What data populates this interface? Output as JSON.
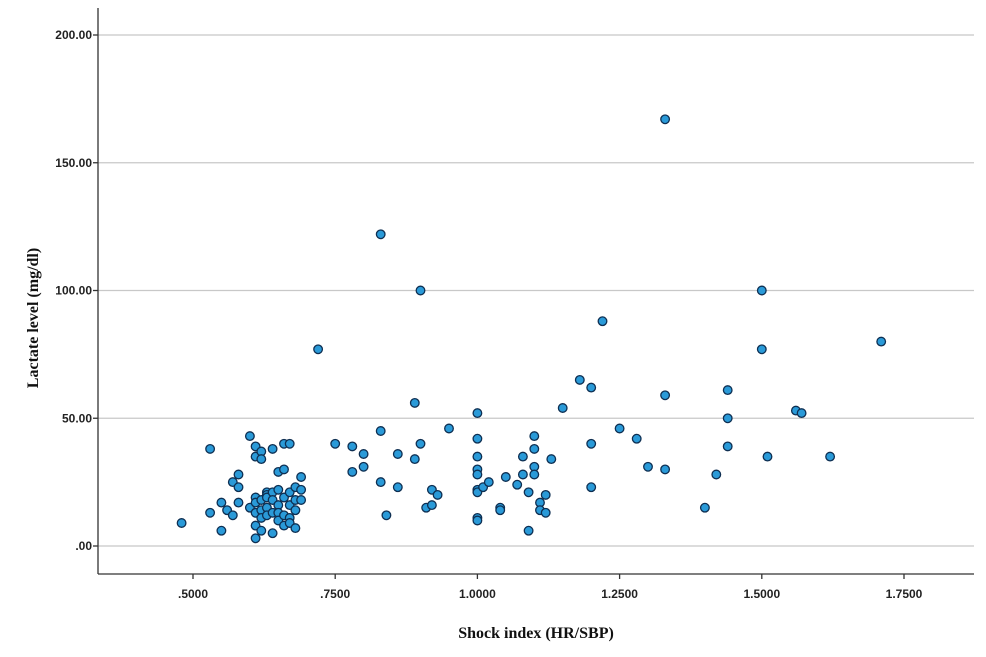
{
  "chart_data": {
    "type": "scatter",
    "xlabel": "Shock index (HR/SBP)",
    "ylabel": "Lactate level (mg/dl)",
    "xlim": [
      0.3,
      1.88
    ],
    "ylim": [
      -10,
      210
    ],
    "x_ticks": [
      0.5,
      0.75,
      1.0,
      1.25,
      1.5,
      1.75
    ],
    "x_tick_labels": [
      ".5000",
      ".7500",
      "1.0000",
      "1.2500",
      "1.5000",
      "1.7500"
    ],
    "y_ticks": [
      0,
      50,
      100,
      150,
      200
    ],
    "y_tick_labels": [
      ".00",
      "50.00",
      "100.00",
      "150.00",
      "200.00"
    ],
    "grid": "horizontal",
    "marker_fill": "#2a9ad8",
    "marker_edge": "#0e2f52",
    "points": [
      [
        0.48,
        9
      ],
      [
        0.53,
        38
      ],
      [
        0.53,
        13
      ],
      [
        0.55,
        17
      ],
      [
        0.55,
        6
      ],
      [
        0.56,
        14
      ],
      [
        0.57,
        12
      ],
      [
        0.57,
        25
      ],
      [
        0.58,
        28
      ],
      [
        0.58,
        23
      ],
      [
        0.58,
        17
      ],
      [
        0.6,
        43
      ],
      [
        0.6,
        15
      ],
      [
        0.61,
        39
      ],
      [
        0.61,
        35
      ],
      [
        0.61,
        19
      ],
      [
        0.61,
        17
      ],
      [
        0.61,
        13
      ],
      [
        0.61,
        8
      ],
      [
        0.61,
        3
      ],
      [
        0.62,
        37
      ],
      [
        0.62,
        34
      ],
      [
        0.62,
        18
      ],
      [
        0.62,
        14
      ],
      [
        0.62,
        11
      ],
      [
        0.62,
        6
      ],
      [
        0.63,
        21
      ],
      [
        0.63,
        20
      ],
      [
        0.63,
        19
      ],
      [
        0.63,
        15
      ],
      [
        0.63,
        12
      ],
      [
        0.64,
        38
      ],
      [
        0.64,
        21
      ],
      [
        0.64,
        18
      ],
      [
        0.64,
        13
      ],
      [
        0.64,
        5
      ],
      [
        0.65,
        29
      ],
      [
        0.65,
        22
      ],
      [
        0.65,
        16
      ],
      [
        0.65,
        13
      ],
      [
        0.65,
        10
      ],
      [
        0.66,
        40
      ],
      [
        0.66,
        30
      ],
      [
        0.66,
        19
      ],
      [
        0.66,
        12
      ],
      [
        0.66,
        8
      ],
      [
        0.67,
        40
      ],
      [
        0.67,
        21
      ],
      [
        0.67,
        16
      ],
      [
        0.67,
        11
      ],
      [
        0.67,
        9
      ],
      [
        0.68,
        23
      ],
      [
        0.68,
        18
      ],
      [
        0.68,
        14
      ],
      [
        0.68,
        7
      ],
      [
        0.69,
        27
      ],
      [
        0.69,
        22
      ],
      [
        0.69,
        18
      ],
      [
        0.72,
        77
      ],
      [
        0.75,
        40
      ],
      [
        0.78,
        39
      ],
      [
        0.78,
        29
      ],
      [
        0.8,
        36
      ],
      [
        0.8,
        31
      ],
      [
        0.83,
        122
      ],
      [
        0.83,
        45
      ],
      [
        0.83,
        25
      ],
      [
        0.84,
        12
      ],
      [
        0.86,
        36
      ],
      [
        0.86,
        23
      ],
      [
        0.89,
        56
      ],
      [
        0.89,
        34
      ],
      [
        0.9,
        100
      ],
      [
        0.9,
        40
      ],
      [
        0.91,
        15
      ],
      [
        0.92,
        22
      ],
      [
        0.92,
        16
      ],
      [
        0.93,
        20
      ],
      [
        0.95,
        46
      ],
      [
        1.0,
        52
      ],
      [
        1.0,
        42
      ],
      [
        1.0,
        35
      ],
      [
        1.0,
        30
      ],
      [
        1.0,
        28
      ],
      [
        1.0,
        22
      ],
      [
        1.0,
        21
      ],
      [
        1.0,
        11
      ],
      [
        1.0,
        10
      ],
      [
        1.01,
        23
      ],
      [
        1.02,
        25
      ],
      [
        1.04,
        15
      ],
      [
        1.04,
        14
      ],
      [
        1.05,
        27
      ],
      [
        1.07,
        24
      ],
      [
        1.08,
        35
      ],
      [
        1.08,
        28
      ],
      [
        1.09,
        21
      ],
      [
        1.09,
        6
      ],
      [
        1.1,
        43
      ],
      [
        1.1,
        38
      ],
      [
        1.1,
        31
      ],
      [
        1.1,
        28
      ],
      [
        1.11,
        17
      ],
      [
        1.11,
        14
      ],
      [
        1.12,
        20
      ],
      [
        1.12,
        13
      ],
      [
        1.13,
        34
      ],
      [
        1.15,
        54
      ],
      [
        1.18,
        65
      ],
      [
        1.2,
        62
      ],
      [
        1.2,
        40
      ],
      [
        1.2,
        23
      ],
      [
        1.22,
        88
      ],
      [
        1.25,
        46
      ],
      [
        1.28,
        42
      ],
      [
        1.3,
        31
      ],
      [
        1.33,
        167
      ],
      [
        1.33,
        59
      ],
      [
        1.33,
        30
      ],
      [
        1.4,
        15
      ],
      [
        1.42,
        28
      ],
      [
        1.44,
        61
      ],
      [
        1.44,
        50
      ],
      [
        1.44,
        39
      ],
      [
        1.5,
        100
      ],
      [
        1.5,
        77
      ],
      [
        1.51,
        35
      ],
      [
        1.56,
        53
      ],
      [
        1.57,
        52
      ],
      [
        1.62,
        35
      ],
      [
        1.71,
        80
      ]
    ]
  }
}
